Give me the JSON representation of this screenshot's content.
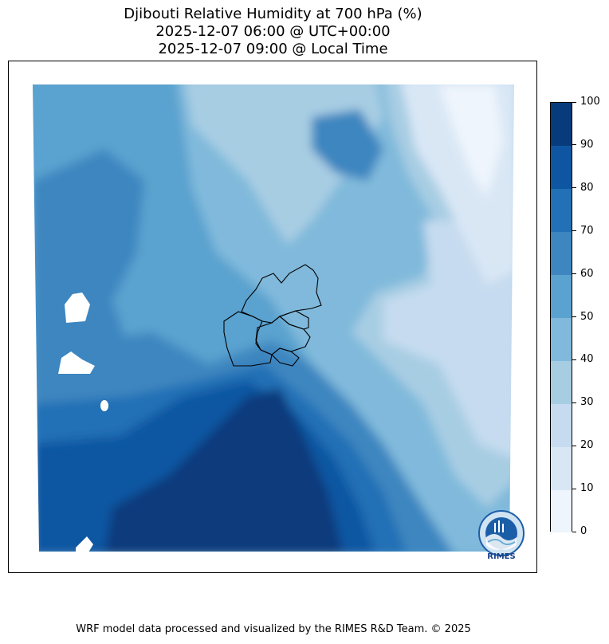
{
  "title": {
    "line1": "Djibouti Relative Humidity at 700 hPa (%)",
    "line2": "2025-12-07 06:00 @ UTC+00:00",
    "line3": "2025-12-07 09:00 @ Local Time"
  },
  "colorbar": {
    "min": 0,
    "max": 100,
    "ticks": [
      "0",
      "10",
      "20",
      "30",
      "40",
      "50",
      "60",
      "70",
      "80",
      "90",
      "100"
    ],
    "colors": [
      "#f7fbff",
      "#deebf7",
      "#c6dbef",
      "#9ecae1",
      "#6baed6",
      "#4292c6",
      "#2171b5",
      "#08519c",
      "#08306b",
      "#08306b"
    ],
    "band_colors": [
      "#eef5fc",
      "#d9e7f5",
      "#c6dbef",
      "#a7cde3",
      "#80b9db",
      "#5aa2cf",
      "#3d86c0",
      "#2270b5",
      "#0f56a2",
      "#083b7c"
    ]
  },
  "logo": {
    "text": "RIMES"
  },
  "footer": "WRF model data processed and visualized by the RIMES R&D Team. © 2025",
  "colors": {
    "border": "#000000",
    "background": "#ffffff"
  }
}
